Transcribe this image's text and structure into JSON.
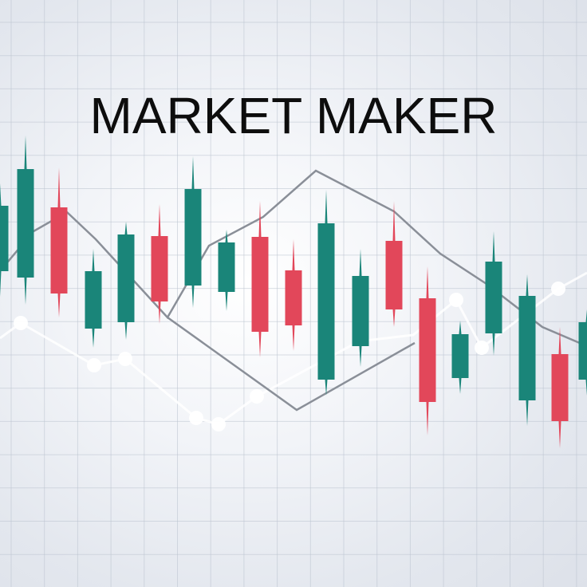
{
  "headline": "MARKET MAKER",
  "colors": {
    "bullish": "#1a8579",
    "bearish": "#e2475a",
    "grid": "#bcc4d0",
    "line_dark": "#8a8f98",
    "line_light": "#ffffff",
    "text": "#0d0d0d"
  }
}
